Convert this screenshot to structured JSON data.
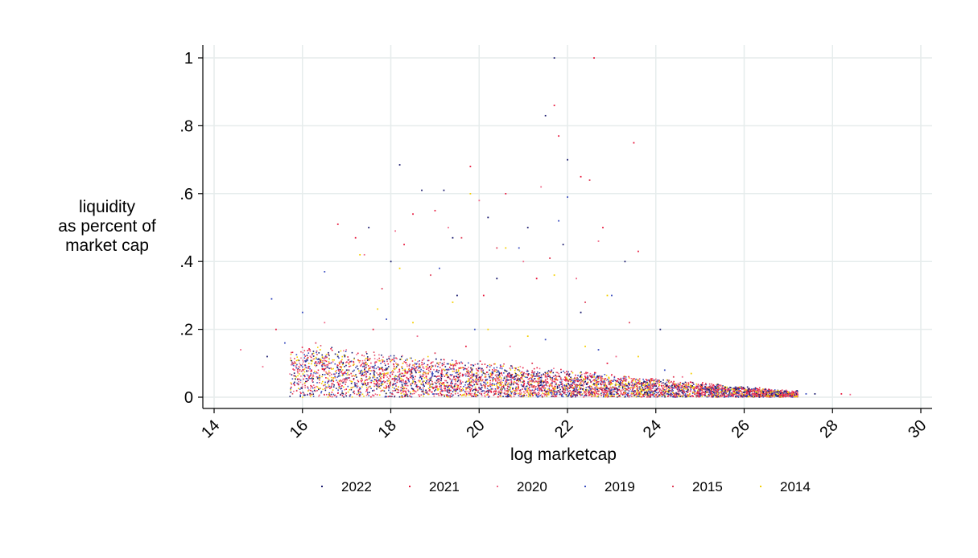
{
  "chart_data": {
    "type": "scatter",
    "xlabel": "log marketcap",
    "ylabel_lines": [
      "liquidity",
      "as percent of",
      "market cap"
    ],
    "xlim": [
      14,
      30
    ],
    "ylim": [
      0,
      1
    ],
    "x_ticks": [
      14,
      16,
      18,
      20,
      22,
      24,
      26,
      28,
      30
    ],
    "x_tick_labels": [
      "14",
      "16",
      "18",
      "20",
      "22",
      "24",
      "26",
      "28",
      "30"
    ],
    "y_ticks": [
      0,
      0.2,
      0.4,
      0.6,
      0.8,
      1
    ],
    "y_tick_labels": [
      "0",
      ".2",
      ".4",
      ".6",
      ".8",
      "1"
    ],
    "grid": true,
    "legend_position": "bottom",
    "series": [
      {
        "name": "2022",
        "color": "#1a1a6e",
        "points": [
          [
            21.7,
            1.0
          ],
          [
            18.2,
            0.685
          ],
          [
            21.5,
            0.83
          ],
          [
            22.0,
            0.7
          ],
          [
            19.2,
            0.61
          ],
          [
            18.7,
            0.61
          ],
          [
            20.2,
            0.53
          ],
          [
            21.1,
            0.5
          ],
          [
            19.4,
            0.47
          ],
          [
            18.0,
            0.4
          ],
          [
            23.3,
            0.4
          ],
          [
            24.1,
            0.2
          ],
          [
            17.5,
            0.5
          ],
          [
            20.4,
            0.35
          ],
          [
            22.3,
            0.25
          ],
          [
            16.8,
            0.12
          ],
          [
            18.9,
            0.05
          ],
          [
            20.8,
            0.06
          ],
          [
            22.6,
            0.04
          ],
          [
            24.5,
            0.03
          ],
          [
            26.0,
            0.015
          ],
          [
            27.6,
            0.01
          ],
          [
            15.2,
            0.12
          ],
          [
            17.0,
            0.08
          ],
          [
            19.5,
            0.3
          ],
          [
            21.9,
            0.45
          ]
        ]
      },
      {
        "name": "2021",
        "color": "#e8173c",
        "points": [
          [
            22.6,
            1.0
          ],
          [
            21.7,
            0.86
          ],
          [
            21.8,
            0.77
          ],
          [
            23.5,
            0.75
          ],
          [
            19.8,
            0.68
          ],
          [
            22.3,
            0.65
          ],
          [
            20.6,
            0.6
          ],
          [
            19.0,
            0.55
          ],
          [
            18.5,
            0.54
          ],
          [
            16.8,
            0.51
          ],
          [
            22.8,
            0.5
          ],
          [
            23.6,
            0.43
          ],
          [
            17.2,
            0.47
          ],
          [
            18.3,
            0.45
          ],
          [
            20.1,
            0.3
          ],
          [
            21.3,
            0.35
          ],
          [
            17.6,
            0.2
          ],
          [
            19.7,
            0.15
          ],
          [
            22.9,
            0.1
          ],
          [
            25.2,
            0.03
          ],
          [
            28.2,
            0.01
          ],
          [
            15.4,
            0.2
          ],
          [
            16.2,
            0.08
          ],
          [
            18.8,
            0.06
          ],
          [
            20.5,
            0.07
          ],
          [
            23.8,
            0.05
          ],
          [
            26.3,
            0.02
          ]
        ]
      },
      {
        "name": "2020",
        "color": "#f06a8a",
        "points": [
          [
            20.0,
            0.58
          ],
          [
            21.4,
            0.62
          ],
          [
            22.7,
            0.46
          ],
          [
            19.3,
            0.5
          ],
          [
            18.1,
            0.49
          ],
          [
            17.4,
            0.42
          ],
          [
            21.0,
            0.4
          ],
          [
            22.2,
            0.35
          ],
          [
            16.5,
            0.22
          ],
          [
            18.6,
            0.18
          ],
          [
            20.7,
            0.15
          ],
          [
            23.1,
            0.12
          ],
          [
            24.6,
            0.06
          ],
          [
            25.5,
            0.03
          ],
          [
            15.1,
            0.09
          ],
          [
            14.6,
            0.14
          ],
          [
            26.5,
            0.02
          ],
          [
            28.4,
            0.008
          ]
        ]
      },
      {
        "name": "2019",
        "color": "#3a4dbf",
        "points": [
          [
            16.5,
            0.37
          ],
          [
            15.3,
            0.29
          ],
          [
            22.0,
            0.59
          ],
          [
            21.8,
            0.52
          ],
          [
            20.9,
            0.44
          ],
          [
            19.1,
            0.38
          ],
          [
            23.0,
            0.3
          ],
          [
            16.0,
            0.25
          ],
          [
            17.9,
            0.23
          ],
          [
            19.9,
            0.2
          ],
          [
            21.5,
            0.17
          ],
          [
            22.7,
            0.14
          ],
          [
            24.2,
            0.08
          ],
          [
            25.8,
            0.03
          ],
          [
            27.4,
            0.01
          ],
          [
            15.6,
            0.16
          ],
          [
            18.4,
            0.05
          ],
          [
            20.3,
            0.04
          ],
          [
            22.1,
            0.05
          ]
        ]
      },
      {
        "name": "2015",
        "color": "#e0405a",
        "points": [
          [
            22.5,
            0.64
          ],
          [
            19.6,
            0.47
          ],
          [
            20.4,
            0.44
          ],
          [
            21.6,
            0.41
          ],
          [
            18.9,
            0.36
          ],
          [
            17.8,
            0.32
          ],
          [
            22.4,
            0.28
          ],
          [
            23.4,
            0.22
          ],
          [
            16.3,
            0.16
          ],
          [
            19.0,
            0.13
          ],
          [
            21.2,
            0.1
          ],
          [
            24.4,
            0.06
          ],
          [
            26.2,
            0.02
          ],
          [
            17.1,
            0.07
          ],
          [
            15.8,
            0.1
          ]
        ]
      },
      {
        "name": "2014",
        "color": "#f5d000",
        "points": [
          [
            19.8,
            0.6
          ],
          [
            17.3,
            0.42
          ],
          [
            18.2,
            0.38
          ],
          [
            20.6,
            0.44
          ],
          [
            21.7,
            0.36
          ],
          [
            22.9,
            0.3
          ],
          [
            19.4,
            0.28
          ],
          [
            17.7,
            0.26
          ],
          [
            18.5,
            0.22
          ],
          [
            20.2,
            0.2
          ],
          [
            21.1,
            0.18
          ],
          [
            22.4,
            0.15
          ],
          [
            23.6,
            0.12
          ],
          [
            24.8,
            0.07
          ],
          [
            16.4,
            0.14
          ],
          [
            15.9,
            0.11
          ],
          [
            25.9,
            0.03
          ],
          [
            27.0,
            0.015
          ],
          [
            18.8,
            0.09
          ],
          [
            20.9,
            0.08
          ],
          [
            22.6,
            0.06
          ]
        ]
      }
    ]
  }
}
